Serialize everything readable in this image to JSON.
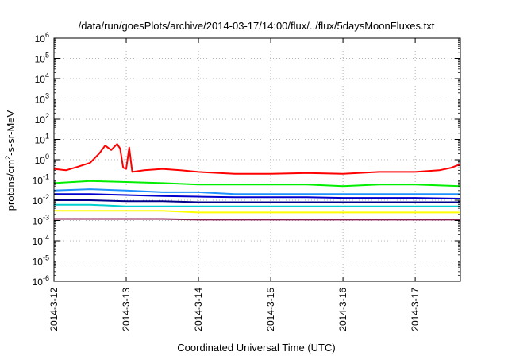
{
  "chart_data": {
    "type": "line",
    "title": "/data/run/goesPlots/archive/2014-03-17/14:00/flux/../flux/5daysMoonFluxes.txt",
    "xlabel": "Coordinated Universal Time (UTC)",
    "ylabel": {
      "base": "protons/cm",
      "sup": "2",
      "rest": "-s-sr-MeV"
    },
    "y_scale": "log",
    "ylim": [
      1e-06,
      1000000.0
    ],
    "xlim": [
      "2014-03-12 00:00",
      "2014-03-17 15:00"
    ],
    "x_ticks": [
      "2014-3-12",
      "2014-3-13",
      "2014-3-14",
      "2014-3-15",
      "2014-3-16",
      "2014-3-17"
    ],
    "y_ticks": [
      {
        "value": 1e-06,
        "base": "10",
        "exp": "-6"
      },
      {
        "value": 1e-05,
        "base": "10",
        "exp": "-5"
      },
      {
        "value": 0.0001,
        "base": "10",
        "exp": "-4"
      },
      {
        "value": 0.001,
        "base": "10",
        "exp": "-3"
      },
      {
        "value": 0.01,
        "base": "10",
        "exp": "-2"
      },
      {
        "value": 0.1,
        "base": "10",
        "exp": "-1"
      },
      {
        "value": 1,
        "base": "10",
        "exp": "0"
      },
      {
        "value": 10.0,
        "base": "10",
        "exp": "1"
      },
      {
        "value": 100.0,
        "base": "10",
        "exp": "2"
      },
      {
        "value": 1000.0,
        "base": "10",
        "exp": "3"
      },
      {
        "value": 10000.0,
        "base": "10",
        "exp": "4"
      },
      {
        "value": 100000.0,
        "base": "10",
        "exp": "5"
      },
      {
        "value": 1000000.0,
        "base": "10",
        "exp": "6"
      }
    ],
    "grid": true,
    "series": [
      {
        "color": "#ff0000",
        "points": [
          [
            "2014-03-12 00:00",
            0.35
          ],
          [
            "2014-03-12 04:00",
            0.3
          ],
          [
            "2014-03-12 08:00",
            0.45
          ],
          [
            "2014-03-12 12:00",
            0.7
          ],
          [
            "2014-03-12 15:00",
            2.0
          ],
          [
            "2014-03-12 17:00",
            5.0
          ],
          [
            "2014-03-12 19:00",
            3.0
          ],
          [
            "2014-03-12 21:00",
            6.0
          ],
          [
            "2014-03-12 22:00",
            3.5
          ],
          [
            "2014-03-12 23:00",
            0.4
          ],
          [
            "2014-03-13 00:00",
            0.35
          ],
          [
            "2014-03-13 01:00",
            4.0
          ],
          [
            "2014-03-13 02:00",
            0.25
          ],
          [
            "2014-03-13 06:00",
            0.3
          ],
          [
            "2014-03-13 12:00",
            0.35
          ],
          [
            "2014-03-13 18:00",
            0.3
          ],
          [
            "2014-03-14 00:00",
            0.25
          ],
          [
            "2014-03-14 12:00",
            0.2
          ],
          [
            "2014-03-15 00:00",
            0.2
          ],
          [
            "2014-03-15 12:00",
            0.22
          ],
          [
            "2014-03-16 00:00",
            0.2
          ],
          [
            "2014-03-16 12:00",
            0.25
          ],
          [
            "2014-03-17 00:00",
            0.25
          ],
          [
            "2014-03-17 08:00",
            0.3
          ],
          [
            "2014-03-17 12:00",
            0.4
          ],
          [
            "2014-03-17 15:00",
            0.6
          ]
        ]
      },
      {
        "color": "#00ee00",
        "points": [
          [
            "2014-03-12 00:00",
            0.07
          ],
          [
            "2014-03-12 12:00",
            0.09
          ],
          [
            "2014-03-13 00:00",
            0.08
          ],
          [
            "2014-03-13 12:00",
            0.07
          ],
          [
            "2014-03-14 00:00",
            0.06
          ],
          [
            "2014-03-14 12:00",
            0.06
          ],
          [
            "2014-03-15 00:00",
            0.06
          ],
          [
            "2014-03-15 12:00",
            0.06
          ],
          [
            "2014-03-16 00:00",
            0.05
          ],
          [
            "2014-03-16 12:00",
            0.06
          ],
          [
            "2014-03-17 00:00",
            0.06
          ],
          [
            "2014-03-17 15:00",
            0.05
          ]
        ]
      },
      {
        "color": "#1e90ff",
        "points": [
          [
            "2014-03-12 00:00",
            0.03
          ],
          [
            "2014-03-12 12:00",
            0.035
          ],
          [
            "2014-03-13 00:00",
            0.03
          ],
          [
            "2014-03-13 12:00",
            0.025
          ],
          [
            "2014-03-14 00:00",
            0.025
          ],
          [
            "2014-03-14 12:00",
            0.02
          ],
          [
            "2014-03-15 00:00",
            0.02
          ],
          [
            "2014-03-15 12:00",
            0.02
          ],
          [
            "2014-03-16 00:00",
            0.02
          ],
          [
            "2014-03-16 12:00",
            0.02
          ],
          [
            "2014-03-17 00:00",
            0.02
          ],
          [
            "2014-03-17 15:00",
            0.02
          ]
        ]
      },
      {
        "color": "#0000cd",
        "points": [
          [
            "2014-03-12 00:00",
            0.02
          ],
          [
            "2014-03-12 12:00",
            0.02
          ],
          [
            "2014-03-13 00:00",
            0.018
          ],
          [
            "2014-03-13 12:00",
            0.016
          ],
          [
            "2014-03-14 00:00",
            0.015
          ],
          [
            "2014-03-14 12:00",
            0.014
          ],
          [
            "2014-03-15 00:00",
            0.014
          ],
          [
            "2014-03-15 12:00",
            0.014
          ],
          [
            "2014-03-16 00:00",
            0.013
          ],
          [
            "2014-03-16 12:00",
            0.013
          ],
          [
            "2014-03-17 00:00",
            0.013
          ],
          [
            "2014-03-17 15:00",
            0.012
          ]
        ]
      },
      {
        "color": "#00008b",
        "points": [
          [
            "2014-03-12 00:00",
            0.01
          ],
          [
            "2014-03-12 12:00",
            0.01
          ],
          [
            "2014-03-13 00:00",
            0.009
          ],
          [
            "2014-03-13 12:00",
            0.009
          ],
          [
            "2014-03-14 00:00",
            0.008
          ],
          [
            "2014-03-14 12:00",
            0.008
          ],
          [
            "2014-03-15 00:00",
            0.008
          ],
          [
            "2014-03-15 12:00",
            0.008
          ],
          [
            "2014-03-16 00:00",
            0.008
          ],
          [
            "2014-03-16 12:00",
            0.008
          ],
          [
            "2014-03-17 00:00",
            0.008
          ],
          [
            "2014-03-17 15:00",
            0.008
          ]
        ]
      },
      {
        "color": "#00ced1",
        "points": [
          [
            "2014-03-12 00:00",
            0.006
          ],
          [
            "2014-03-12 12:00",
            0.006
          ],
          [
            "2014-03-13 00:00",
            0.005
          ],
          [
            "2014-03-13 12:00",
            0.005
          ],
          [
            "2014-03-14 00:00",
            0.005
          ],
          [
            "2014-03-14 12:00",
            0.005
          ],
          [
            "2014-03-15 00:00",
            0.005
          ],
          [
            "2014-03-15 12:00",
            0.005
          ],
          [
            "2014-03-16 00:00",
            0.005
          ],
          [
            "2014-03-16 12:00",
            0.005
          ],
          [
            "2014-03-17 00:00",
            0.005
          ],
          [
            "2014-03-17 15:00",
            0.005
          ]
        ]
      },
      {
        "color": "#ffff00",
        "points": [
          [
            "2014-03-12 00:00",
            0.003
          ],
          [
            "2014-03-12 12:00",
            0.003
          ],
          [
            "2014-03-13 00:00",
            0.003
          ],
          [
            "2014-03-13 12:00",
            0.003
          ],
          [
            "2014-03-14 00:00",
            0.0025
          ],
          [
            "2014-03-14 12:00",
            0.0025
          ],
          [
            "2014-03-15 00:00",
            0.0025
          ],
          [
            "2014-03-15 12:00",
            0.0025
          ],
          [
            "2014-03-16 00:00",
            0.0025
          ],
          [
            "2014-03-16 12:00",
            0.0025
          ],
          [
            "2014-03-17 00:00",
            0.0025
          ],
          [
            "2014-03-17 15:00",
            0.0025
          ]
        ]
      },
      {
        "color": "#8b2252",
        "points": [
          [
            "2014-03-12 00:00",
            0.0012
          ],
          [
            "2014-03-12 12:00",
            0.0012
          ],
          [
            "2014-03-13 00:00",
            0.0012
          ],
          [
            "2014-03-13 12:00",
            0.0012
          ],
          [
            "2014-03-14 00:00",
            0.0011
          ],
          [
            "2014-03-14 12:00",
            0.0011
          ],
          [
            "2014-03-15 00:00",
            0.0011
          ],
          [
            "2014-03-15 12:00",
            0.0011
          ],
          [
            "2014-03-16 00:00",
            0.0011
          ],
          [
            "2014-03-16 12:00",
            0.0011
          ],
          [
            "2014-03-17 00:00",
            0.0011
          ],
          [
            "2014-03-17 15:00",
            0.0011
          ]
        ]
      }
    ]
  }
}
